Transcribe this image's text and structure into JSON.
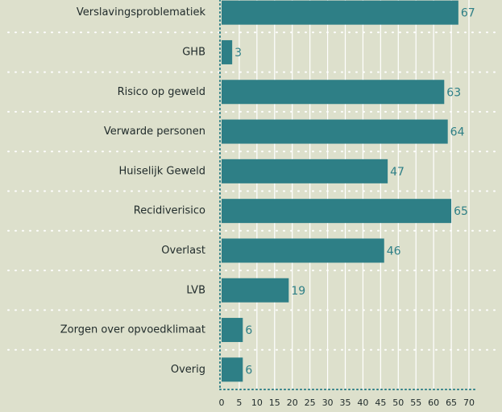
{
  "chart_data": {
    "type": "bar",
    "orientation": "horizontal",
    "categories": [
      "Verslavingsproblematiek",
      "GHB",
      "Risico op geweld",
      "Verwarde personen",
      "Huiselijk Geweld",
      "Recidiverisico",
      "Overlast",
      "LVB",
      "Zorgen over opvoedklimaat",
      "Overig"
    ],
    "values": [
      67,
      3,
      63,
      64,
      47,
      65,
      46,
      19,
      6,
      6
    ],
    "color": "#2e7f86",
    "xlim": [
      0,
      70
    ],
    "xticks": [
      0,
      5,
      10,
      15,
      20,
      25,
      30,
      35,
      40,
      45,
      50,
      55,
      60,
      65,
      70
    ],
    "grid": true
  }
}
